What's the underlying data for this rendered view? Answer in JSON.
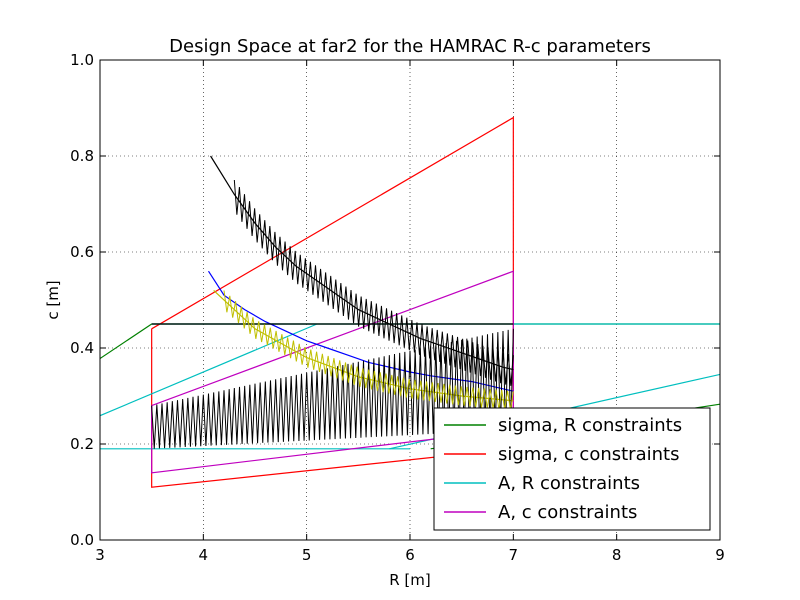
{
  "chart_data": {
    "type": "line",
    "title": "Design Space at far2 for the HAMRAC R-c parameters",
    "xlabel": "R [m]",
    "ylabel": "c [m]",
    "xlim": [
      3,
      9
    ],
    "ylim": [
      0.0,
      1.0
    ],
    "xticks": [
      3,
      4,
      5,
      6,
      7,
      8,
      9
    ],
    "xtick_labels": [
      "3",
      "4",
      "5",
      "6",
      "7",
      "8",
      "9"
    ],
    "yticks": [
      0.0,
      0.2,
      0.4,
      0.6,
      0.8,
      1.0
    ],
    "ytick_labels": [
      "0.0",
      "0.2",
      "0.4",
      "0.6",
      "0.8",
      "1.0"
    ],
    "grid": true,
    "legend_position": "lower-right",
    "legend": [
      {
        "label": "sigma, R constraints",
        "color": "#008000"
      },
      {
        "label": "sigma, c constraints",
        "color": "#ff0000"
      },
      {
        "label": "A, R constraints",
        "color": "#00bfbf"
      },
      {
        "label": "A, c constraints",
        "color": "#bf00bf"
      }
    ],
    "series": [
      {
        "name": "sigma, R constraints",
        "color": "#008000",
        "segments": [
          {
            "x": [
              3.0,
              3.5
            ],
            "y": [
              0.378,
              0.45
            ]
          },
          {
            "x": [
              3.5,
              9.0
            ],
            "y": [
              0.45,
              0.45
            ]
          },
          {
            "x": [
              6.2,
              9.0
            ],
            "y": [
              0.19,
              0.283
            ]
          }
        ]
      },
      {
        "name": "sigma, c constraints",
        "color": "#ff0000",
        "segments": [
          {
            "x": [
              3.5,
              7.0,
              7.0,
              3.5,
              3.5
            ],
            "y": [
              0.44,
              0.88,
              0.19,
              0.11,
              0.44
            ]
          }
        ]
      },
      {
        "name": "A, R constraints",
        "color": "#00bfbf",
        "segments": [
          {
            "x": [
              3.0,
              5.1
            ],
            "y": [
              0.259,
              0.45
            ]
          },
          {
            "x": [
              3.5,
              9.0
            ],
            "y": [
              0.45,
              0.45
            ]
          },
          {
            "x": [
              3.0,
              6.0
            ],
            "y": [
              0.19,
              0.19
            ]
          },
          {
            "x": [
              5.8,
              9.0
            ],
            "y": [
              0.19,
              0.345
            ]
          }
        ]
      },
      {
        "name": "A, c constraints",
        "color": "#bf00bf",
        "segments": [
          {
            "x": [
              3.5,
              7.0,
              7.0,
              3.5,
              3.5
            ],
            "y": [
              0.28,
              0.56,
              0.23,
              0.14,
              0.28
            ]
          }
        ]
      },
      {
        "name": "",
        "color": "#0000ff",
        "segments": [
          {
            "x": [
              4.05,
              4.2,
              4.4,
              4.6,
              4.8,
              5.0,
              5.2,
              5.4,
              5.6,
              5.8,
              6.0,
              6.2,
              6.4,
              6.6,
              6.8,
              7.0
            ],
            "y": [
              0.56,
              0.51,
              0.48,
              0.455,
              0.435,
              0.415,
              0.4,
              0.385,
              0.37,
              0.36,
              0.35,
              0.342,
              0.336,
              0.33,
              0.32,
              0.31
            ]
          }
        ]
      },
      {
        "name": "",
        "color": "#bfbf00",
        "segments": [
          {
            "x": [
              4.1,
              4.5,
              5.0,
              5.5,
              6.0,
              6.5,
              7.0
            ],
            "y": [
              0.52,
              0.44,
              0.38,
              0.34,
              0.315,
              0.3,
              0.29
            ]
          }
        ]
      },
      {
        "name": "",
        "color": "#000000",
        "segments": [
          {
            "x": [
              4.07,
              4.3,
              4.5,
              4.7,
              4.9,
              5.1,
              5.3,
              5.5,
              5.7,
              5.9,
              6.1,
              6.3,
              6.5,
              6.7,
              6.9,
              7.0
            ],
            "y": [
              0.8,
              0.72,
              0.66,
              0.61,
              0.57,
              0.54,
              0.51,
              0.48,
              0.46,
              0.44,
              0.42,
              0.405,
              0.39,
              0.375,
              0.36,
              0.355
            ]
          }
        ]
      },
      {
        "name": "",
        "color": "#000000",
        "segments": [
          {
            "x": [
              3.5,
              7.0
            ],
            "y": [
              0.45,
              0.45
            ]
          }
        ]
      }
    ]
  }
}
